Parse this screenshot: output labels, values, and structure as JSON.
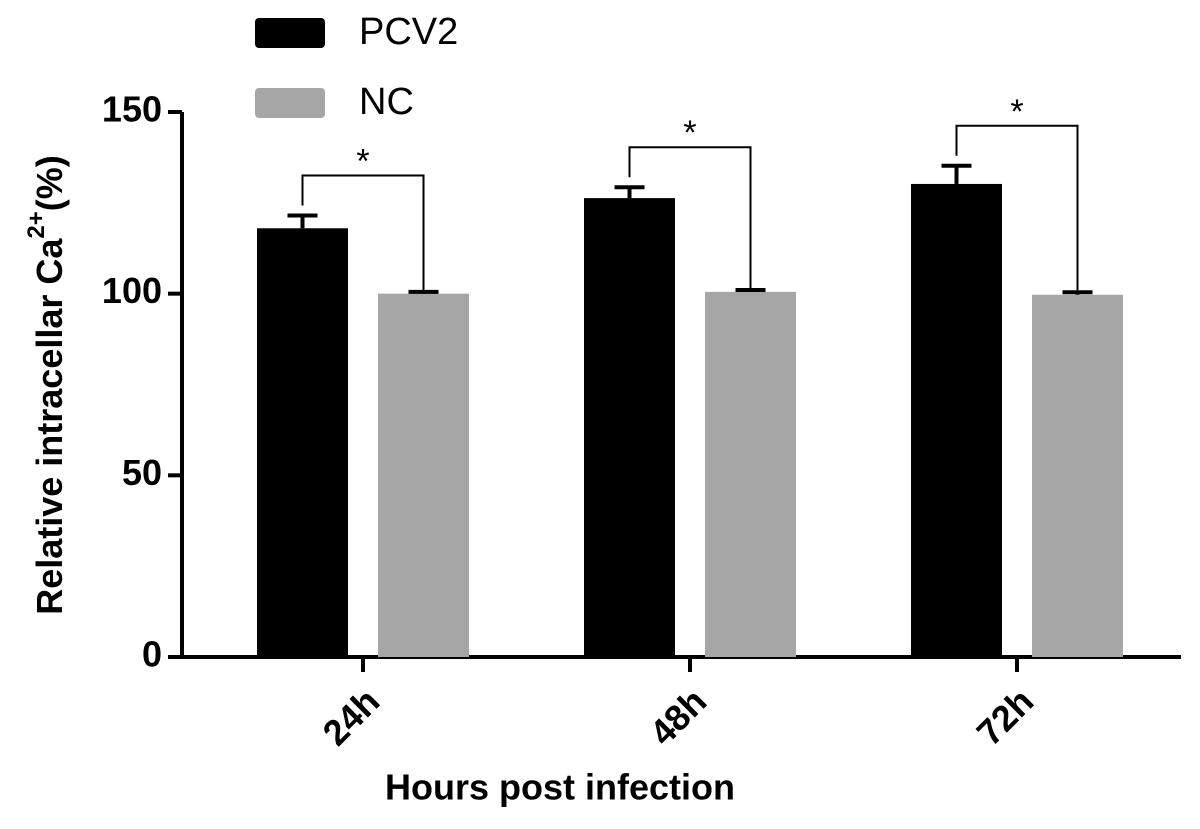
{
  "chart_data": {
    "type": "bar",
    "y_label": "Relative intracellar Ca",
    "y_label_sup": "2+",
    "y_label_suffix": "(%)",
    "x_label": "Hours post infection",
    "categories": [
      "24h",
      "48h",
      "72h"
    ],
    "series": [
      {
        "name": "PCV2",
        "color": "#000000",
        "values": [
          118,
          126.3,
          130.2
        ],
        "errors": [
          3.5,
          3,
          5
        ]
      },
      {
        "name": "NC",
        "color": "#a6a6a6",
        "values": [
          100,
          100.5,
          99.7
        ],
        "errors": [
          0.5,
          0.5,
          0.7
        ]
      }
    ],
    "significance_labels": [
      "*",
      "*",
      "*"
    ],
    "ylim": [
      0,
      150
    ],
    "yticks": [
      0,
      50,
      100,
      150
    ],
    "legend": "top-left"
  }
}
